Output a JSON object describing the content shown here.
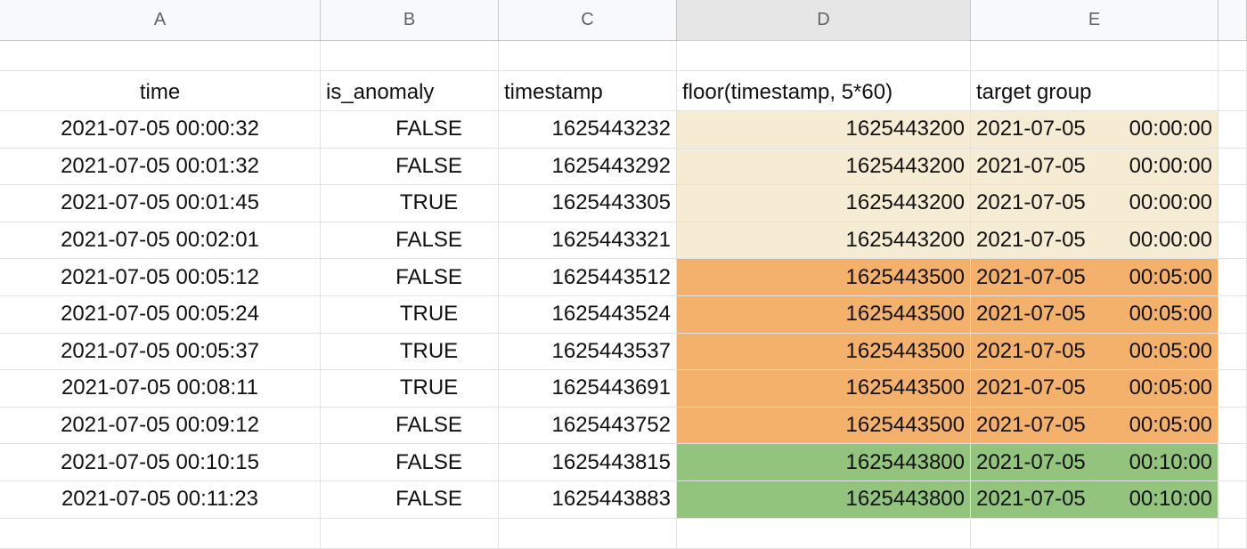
{
  "column_headers": [
    "A",
    "B",
    "C",
    "D",
    "E"
  ],
  "header_row": {
    "time": "time",
    "is_anomaly": "is_anomaly",
    "timestamp": "timestamp",
    "floor": "floor(timestamp, 5*60)",
    "target_group": "target group"
  },
  "group_colors": {
    "g0": "#f5ecd3",
    "g5": "#f4b16c",
    "g10": "#93c47d"
  },
  "rows": [
    {
      "time": "2021-07-05 00:00:32",
      "is_anomaly": "FALSE",
      "timestamp": "1625443232",
      "floor": "1625443200",
      "target_date": "2021-07-05",
      "target_time": "00:00:00",
      "group": "g0"
    },
    {
      "time": "2021-07-05 00:01:32",
      "is_anomaly": "FALSE",
      "timestamp": "1625443292",
      "floor": "1625443200",
      "target_date": "2021-07-05",
      "target_time": "00:00:00",
      "group": "g0"
    },
    {
      "time": "2021-07-05 00:01:45",
      "is_anomaly": "TRUE",
      "timestamp": "1625443305",
      "floor": "1625443200",
      "target_date": "2021-07-05",
      "target_time": "00:00:00",
      "group": "g0"
    },
    {
      "time": "2021-07-05 00:02:01",
      "is_anomaly": "FALSE",
      "timestamp": "1625443321",
      "floor": "1625443200",
      "target_date": "2021-07-05",
      "target_time": "00:00:00",
      "group": "g0"
    },
    {
      "time": "2021-07-05 00:05:12",
      "is_anomaly": "FALSE",
      "timestamp": "1625443512",
      "floor": "1625443500",
      "target_date": "2021-07-05",
      "target_time": "00:05:00",
      "group": "g5"
    },
    {
      "time": "2021-07-05 00:05:24",
      "is_anomaly": "TRUE",
      "timestamp": "1625443524",
      "floor": "1625443500",
      "target_date": "2021-07-05",
      "target_time": "00:05:00",
      "group": "g5"
    },
    {
      "time": "2021-07-05 00:05:37",
      "is_anomaly": "TRUE",
      "timestamp": "1625443537",
      "floor": "1625443500",
      "target_date": "2021-07-05",
      "target_time": "00:05:00",
      "group": "g5"
    },
    {
      "time": "2021-07-05 00:08:11",
      "is_anomaly": "TRUE",
      "timestamp": "1625443691",
      "floor": "1625443500",
      "target_date": "2021-07-05",
      "target_time": "00:05:00",
      "group": "g5"
    },
    {
      "time": "2021-07-05 00:09:12",
      "is_anomaly": "FALSE",
      "timestamp": "1625443752",
      "floor": "1625443500",
      "target_date": "2021-07-05",
      "target_time": "00:05:00",
      "group": "g5"
    },
    {
      "time": "2021-07-05 00:10:15",
      "is_anomaly": "FALSE",
      "timestamp": "1625443815",
      "floor": "1625443800",
      "target_date": "2021-07-05",
      "target_time": "00:10:00",
      "group": "g10"
    },
    {
      "time": "2021-07-05 00:11:23",
      "is_anomaly": "FALSE",
      "timestamp": "1625443883",
      "floor": "1625443800",
      "target_date": "2021-07-05",
      "target_time": "00:10:00",
      "group": "g10"
    }
  ]
}
